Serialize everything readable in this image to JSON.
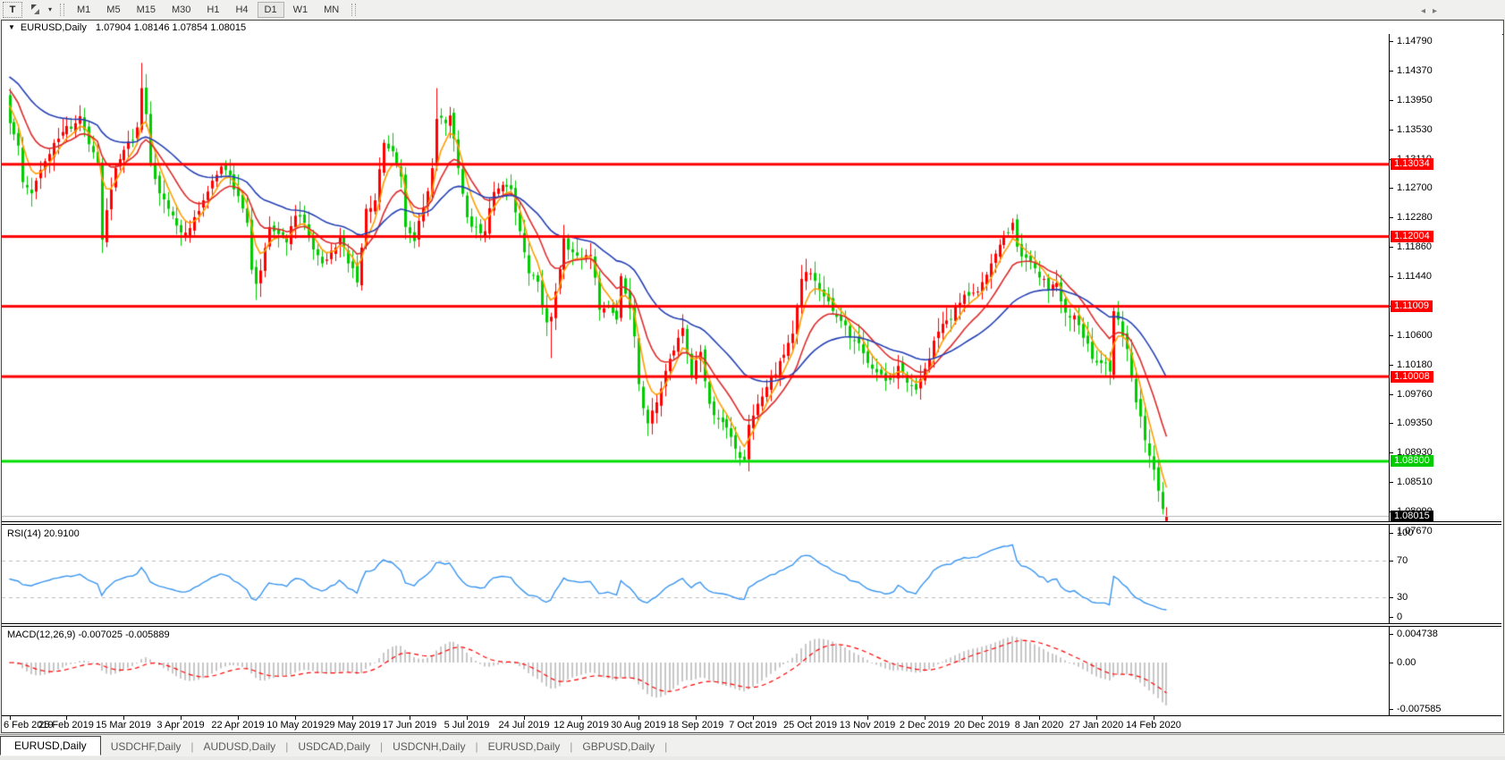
{
  "toolbar": {
    "text_tool_label": "T",
    "timeframes": [
      {
        "label": "M1",
        "active": false
      },
      {
        "label": "M5",
        "active": false
      },
      {
        "label": "M15",
        "active": false
      },
      {
        "label": "M30",
        "active": false
      },
      {
        "label": "H1",
        "active": false
      },
      {
        "label": "H4",
        "active": false
      },
      {
        "label": "D1",
        "active": true
      },
      {
        "label": "W1",
        "active": false
      },
      {
        "label": "MN",
        "active": false
      }
    ]
  },
  "window": {
    "title_symbol": "EURUSD,Daily",
    "title_ohlc": "1.07904 1.08146 1.07854 1.08015"
  },
  "price_axis": {
    "ticks": [
      "1.14790",
      "1.14370",
      "1.13950",
      "1.13530",
      "1.13110",
      "1.12700",
      "1.12280",
      "1.11860",
      "1.11440",
      "1.11020",
      "1.10600",
      "1.10180",
      "1.09760",
      "1.09350",
      "1.08930",
      "1.08510",
      "1.08090",
      "1.07670"
    ],
    "line_labels": [
      {
        "text": "1.13034",
        "price": 1.13034,
        "bg": "#ff0000"
      },
      {
        "text": "1.12004",
        "price": 1.12004,
        "bg": "#ff0000"
      },
      {
        "text": "1.11009",
        "price": 1.11009,
        "bg": "#ff0000"
      },
      {
        "text": "1.10008",
        "price": 1.10008,
        "bg": "#ff0000"
      },
      {
        "text": "1.08800",
        "price": 1.088,
        "bg": "#00cc00"
      },
      {
        "text": "1.08015",
        "price": 1.08015,
        "bg": "#000000"
      }
    ]
  },
  "time_axis": {
    "labels": [
      {
        "text": "6 Feb 2019",
        "bar": 0
      },
      {
        "text": "25 Feb 2019",
        "bar": 13
      },
      {
        "text": "15 Mar 2019",
        "bar": 26
      },
      {
        "text": "3 Apr 2019",
        "bar": 39
      },
      {
        "text": "22 Apr 2019",
        "bar": 52
      },
      {
        "text": "10 May 2019",
        "bar": 65
      },
      {
        "text": "29 May 2019",
        "bar": 78
      },
      {
        "text": "17 Jun 2019",
        "bar": 91
      },
      {
        "text": "5 Jul 2019",
        "bar": 104
      },
      {
        "text": "24 Jul 2019",
        "bar": 117
      },
      {
        "text": "12 Aug 2019",
        "bar": 130
      },
      {
        "text": "30 Aug 2019",
        "bar": 143
      },
      {
        "text": "18 Sep 2019",
        "bar": 156
      },
      {
        "text": "7 Oct 2019",
        "bar": 169
      },
      {
        "text": "25 Oct 2019",
        "bar": 182
      },
      {
        "text": "13 Nov 2019",
        "bar": 195
      },
      {
        "text": "2 Dec 2019",
        "bar": 208
      },
      {
        "text": "20 Dec 2019",
        "bar": 221
      },
      {
        "text": "8 Jan 2020",
        "bar": 234
      },
      {
        "text": "27 Jan 2020",
        "bar": 247
      },
      {
        "text": "14 Feb 2020",
        "bar": 260
      }
    ]
  },
  "rsi_pane": {
    "label": "RSI(14) 20.9100",
    "period": 14,
    "current": 20.91,
    "axis_labels": [
      {
        "text": "100",
        "value": 100
      },
      {
        "text": "70",
        "value": 70
      },
      {
        "text": "30",
        "value": 30
      },
      {
        "text": "0",
        "value": 0
      }
    ],
    "levels": [
      70,
      30
    ],
    "line_color": "#3a95f0",
    "level_color": "#bdbdbd"
  },
  "macd_pane": {
    "label": "MACD(12,26,9) -0.007025 -0.005889",
    "axis_labels": [
      {
        "text": "0.004738",
        "value": 0.004738
      },
      {
        "text": "0.00",
        "value": 0
      },
      {
        "text": "-0.007585",
        "value": -0.007585
      }
    ],
    "histogram_color": "#c8c8c8",
    "signal_color": "#ff0000"
  },
  "tabs": [
    {
      "label": "EURUSD,Daily",
      "active": true
    },
    {
      "label": "USDCHF,Daily",
      "active": false
    },
    {
      "label": "AUDUSD,Daily",
      "active": false
    },
    {
      "label": "USDCAD,Daily",
      "active": false
    },
    {
      "label": "USDCNH,Daily",
      "active": false
    },
    {
      "label": "EURUSD,Daily",
      "active": false
    },
    {
      "label": "GBPUSD,Daily",
      "active": false
    }
  ],
  "chart_data": {
    "type": "candlestick",
    "symbol": "EURUSD",
    "timeframe": "Daily",
    "bars_total": 264,
    "up_color": "#ff0000",
    "down_color": "#00cc00",
    "color_note": "up candles red, down candles lime (CN convention)",
    "price_axis_top": 1.1479,
    "price_axis_bottom": 1.0767,
    "current_price": 1.08015,
    "last_bar_ohlc": {
      "o": 1.07904,
      "h": 1.08146,
      "l": 1.07854,
      "c": 1.08015
    },
    "close_anchors": [
      [
        0,
        1.1362
      ],
      [
        2,
        1.133
      ],
      [
        3,
        1.1278
      ],
      [
        5,
        1.1262
      ],
      [
        7,
        1.1295
      ],
      [
        9,
        1.1318
      ],
      [
        11,
        1.134
      ],
      [
        13,
        1.1358
      ],
      [
        15,
        1.1362
      ],
      [
        16,
        1.1372
      ],
      [
        18,
        1.1332
      ],
      [
        20,
        1.1306
      ],
      [
        21,
        1.1196
      ],
      [
        22,
        1.1238
      ],
      [
        24,
        1.1298
      ],
      [
        26,
        1.1324
      ],
      [
        28,
        1.1338
      ],
      [
        29,
        1.1356
      ],
      [
        30,
        1.1412
      ],
      [
        31,
        1.1375
      ],
      [
        32,
        1.1305
      ],
      [
        34,
        1.1262
      ],
      [
        36,
        1.124
      ],
      [
        38,
        1.1216
      ],
      [
        40,
        1.1206
      ],
      [
        42,
        1.1228
      ],
      [
        44,
        1.1252
      ],
      [
        46,
        1.128
      ],
      [
        48,
        1.13
      ],
      [
        50,
        1.1288
      ],
      [
        52,
        1.1258
      ],
      [
        54,
        1.122
      ],
      [
        55,
        1.1153
      ],
      [
        56,
        1.1133
      ],
      [
        57,
        1.1152
      ],
      [
        59,
        1.1214
      ],
      [
        61,
        1.1204
      ],
      [
        63,
        1.1192
      ],
      [
        65,
        1.123
      ],
      [
        67,
        1.122
      ],
      [
        69,
        1.1182
      ],
      [
        71,
        1.1162
      ],
      [
        73,
        1.118
      ],
      [
        75,
        1.1202
      ],
      [
        77,
        1.1162
      ],
      [
        79,
        1.1135
      ],
      [
        81,
        1.124
      ],
      [
        83,
        1.1252
      ],
      [
        85,
        1.1334
      ],
      [
        87,
        1.1322
      ],
      [
        89,
        1.1286
      ],
      [
        90,
        1.1214
      ],
      [
        92,
        1.1194
      ],
      [
        94,
        1.1242
      ],
      [
        96,
        1.1298
      ],
      [
        97,
        1.1368
      ],
      [
        99,
        1.1362
      ],
      [
        100,
        1.1373
      ],
      [
        102,
        1.1298
      ],
      [
        104,
        1.1228
      ],
      [
        106,
        1.1214
      ],
      [
        108,
        1.1208
      ],
      [
        110,
        1.1264
      ],
      [
        112,
        1.1274
      ],
      [
        114,
        1.1268
      ],
      [
        116,
        1.1208
      ],
      [
        118,
        1.1148
      ],
      [
        120,
        1.1136
      ],
      [
        122,
        1.1078
      ],
      [
        123,
        1.1086
      ],
      [
        125,
        1.1154
      ],
      [
        126,
        1.1198
      ],
      [
        128,
        1.1178
      ],
      [
        130,
        1.117
      ],
      [
        132,
        1.1174
      ],
      [
        134,
        1.1096
      ],
      [
        136,
        1.1102
      ],
      [
        138,
        1.1082
      ],
      [
        139,
        1.1144
      ],
      [
        141,
        1.1098
      ],
      [
        142,
        1.1058
      ],
      [
        143,
        1.099
      ],
      [
        145,
        1.0934
      ],
      [
        147,
        1.0964
      ],
      [
        150,
        1.1026
      ],
      [
        153,
        1.107
      ],
      [
        155,
        1.1002
      ],
      [
        157,
        1.1036
      ],
      [
        159,
        1.0962
      ],
      [
        161,
        1.094
      ],
      [
        163,
        1.0928
      ],
      [
        165,
        1.0898
      ],
      [
        167,
        1.0882
      ],
      [
        168,
        1.0932
      ],
      [
        170,
        1.0962
      ],
      [
        172,
        1.0986
      ],
      [
        174,
        1.1004
      ],
      [
        176,
        1.1032
      ],
      [
        178,
        1.1062
      ],
      [
        180,
        1.114
      ],
      [
        182,
        1.1148
      ],
      [
        184,
        1.1124
      ],
      [
        186,
        1.1108
      ],
      [
        188,
        1.1086
      ],
      [
        190,
        1.1074
      ],
      [
        192,
        1.1052
      ],
      [
        194,
        1.1034
      ],
      [
        196,
        1.1012
      ],
      [
        198,
        1.1004
      ],
      [
        200,
        1.0996
      ],
      [
        202,
        1.1016
      ],
      [
        204,
        1.0992
      ],
      [
        206,
        1.0982
      ],
      [
        208,
        1.1012
      ],
      [
        210,
        1.1052
      ],
      [
        212,
        1.1076
      ],
      [
        214,
        1.1082
      ],
      [
        216,
        1.1106
      ],
      [
        218,
        1.1116
      ],
      [
        220,
        1.1122
      ],
      [
        222,
        1.1146
      ],
      [
        224,
        1.1176
      ],
      [
        226,
        1.1202
      ],
      [
        228,
        1.122
      ],
      [
        229,
        1.1186
      ],
      [
        230,
        1.1172
      ],
      [
        232,
        1.1164
      ],
      [
        234,
        1.1142
      ],
      [
        236,
        1.1124
      ],
      [
        238,
        1.1134
      ],
      [
        240,
        1.1092
      ],
      [
        242,
        1.1088
      ],
      [
        244,
        1.1056
      ],
      [
        246,
        1.1026
      ],
      [
        248,
        1.102
      ],
      [
        250,
        1.1008
      ],
      [
        251,
        1.1094
      ],
      [
        252,
        1.1082
      ],
      [
        253,
        1.1058
      ],
      [
        254,
        1.104
      ],
      [
        255,
        1.1
      ],
      [
        256,
        1.0964
      ],
      [
        257,
        1.0944
      ],
      [
        258,
        1.091
      ],
      [
        259,
        1.0888
      ],
      [
        260,
        1.0868
      ],
      [
        261,
        1.0838
      ],
      [
        262,
        1.0812
      ],
      [
        263,
        1.08015
      ]
    ],
    "special_bars": {
      "21": {
        "o": 1.1306,
        "h": 1.1312,
        "l": 1.1177
      },
      "30": {
        "h": 1.1448
      },
      "56": {
        "l": 1.111
      },
      "97": {
        "h": 1.1412
      },
      "123": {
        "l": 1.1027
      },
      "167": {
        "l": 1.0879
      },
      "263": {
        "o": 1.07904,
        "h": 1.08146,
        "l": 1.07854,
        "c": 1.08015
      }
    },
    "hlines": [
      {
        "price": 1.13034,
        "color": "#ff0000",
        "width": 3
      },
      {
        "price": 1.12004,
        "color": "#ff0000",
        "width": 3
      },
      {
        "price": 1.11009,
        "color": "#ff0000",
        "width": 3
      },
      {
        "price": 1.10008,
        "color": "#ff0000",
        "width": 3
      },
      {
        "price": 1.088,
        "color": "#00dd00",
        "width": 3
      }
    ],
    "moving_averages": [
      {
        "period": 5,
        "method": "ema",
        "color": "#ff9d00",
        "seed": 1.14
      },
      {
        "period": 13,
        "method": "ema",
        "color": "#dd2b2b",
        "seed": 1.1418
      },
      {
        "period": 34,
        "method": "ema",
        "color": "#2641b4",
        "seed": 1.1432
      }
    ],
    "indicators": [
      {
        "name": "RSI",
        "period": 14,
        "current": 20.91
      },
      {
        "name": "MACD",
        "fast": 12,
        "slow": 26,
        "signal": 9,
        "current": -0.007025,
        "signal_current": -0.005889
      }
    ],
    "noise_seed": 11
  }
}
